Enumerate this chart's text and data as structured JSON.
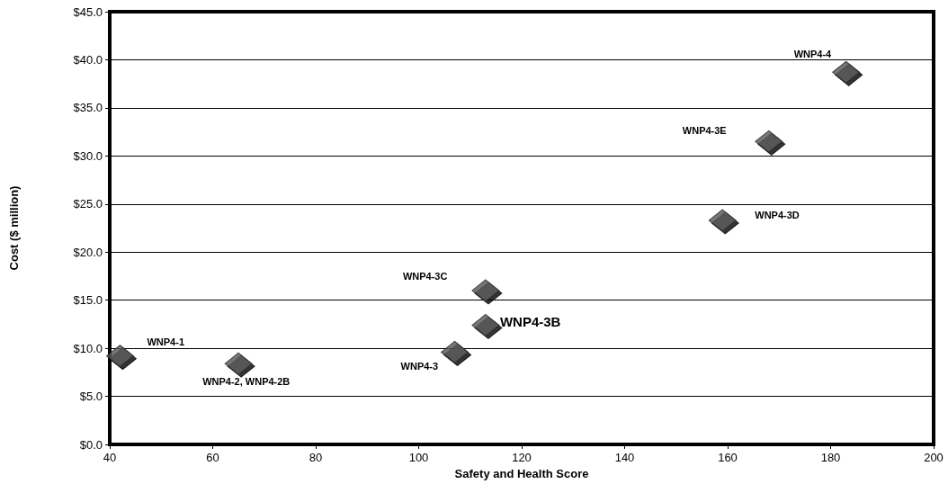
{
  "chart_data": {
    "type": "scatter",
    "xlabel": "Safety and Health Score",
    "ylabel": "Cost ($ million)",
    "x": [
      42,
      65,
      107,
      113,
      113,
      159,
      168,
      183
    ],
    "values": [
      9.2,
      8.4,
      9.6,
      12.4,
      16.0,
      23.3,
      31.5,
      38.7
    ],
    "color": "#555555",
    "marker": "diamond",
    "grid": "y",
    "xlim": [
      40,
      200
    ],
    "xticks": [
      40,
      60,
      80,
      100,
      120,
      140,
      160,
      180,
      200
    ],
    "ylim": [
      0,
      45
    ],
    "yticks": [
      {
        "value": 0,
        "label": "$0.0"
      },
      {
        "value": 5,
        "label": "$5.0"
      },
      {
        "value": 10,
        "label": "$10.0"
      },
      {
        "value": 15,
        "label": "$15.0"
      },
      {
        "value": 20,
        "label": "$20.0"
      },
      {
        "value": 25,
        "label": "$25.0"
      },
      {
        "value": 30,
        "label": "$30.0"
      },
      {
        "value": 35,
        "label": "$35.0"
      },
      {
        "value": 40,
        "label": "$40.0"
      },
      {
        "value": 45,
        "label": "$45.0"
      }
    ],
    "annotations": [
      "WNP4-1",
      "WNP4-2, WNP4-2B",
      "WNP4-3",
      "WNP4-3B",
      "WNP4-3C",
      "WNP4-3D",
      "WNP4-3E",
      "WNP4-4"
    ]
  }
}
